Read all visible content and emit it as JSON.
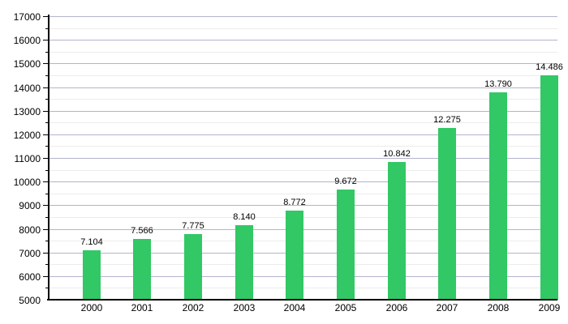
{
  "chart_data": {
    "type": "bar",
    "title": "",
    "xlabel": "",
    "ylabel": "",
    "categories": [
      "2000",
      "2001",
      "2002",
      "2003",
      "2004",
      "2005",
      "2006",
      "2007",
      "2008",
      "2009"
    ],
    "values": [
      7104,
      7566,
      7775,
      8140,
      8772,
      9672,
      10842,
      12275,
      13790,
      14486
    ],
    "value_labels": [
      "7.104",
      "7.566",
      "7.775",
      "8.140",
      "8.772",
      "9.672",
      "10.842",
      "12.275",
      "13.790",
      "14.486"
    ],
    "ylim": [
      5000,
      17000
    ],
    "ytick_step_major": 1000,
    "ytick_step_minor": 500,
    "ytick_labels": [
      "5000",
      "6000",
      "7000",
      "8000",
      "9000",
      "10000",
      "11000",
      "12000",
      "13000",
      "14000",
      "15000",
      "16000",
      "17000"
    ],
    "grid": "horizontal",
    "legend_position": "none",
    "colors": {
      "bar_fill": "#31c865",
      "gridline_major": "#b3b3cf",
      "gridline_minor": "#ececec",
      "axis": "#000000",
      "text": "#000000",
      "background": "#ffffff"
    }
  }
}
